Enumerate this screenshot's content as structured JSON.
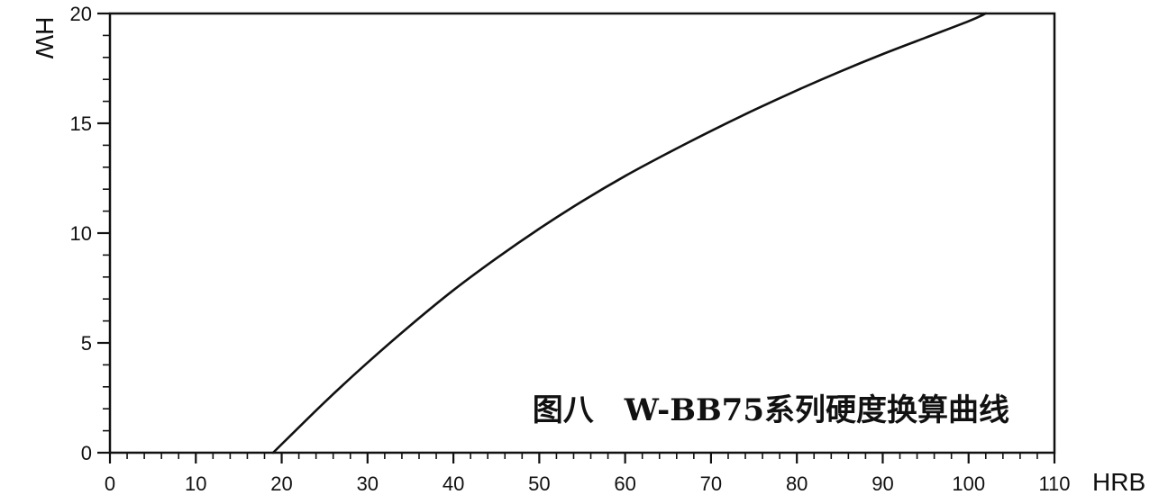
{
  "chart_data": {
    "type": "line",
    "title": "图八　W-BB75系列硬度换算曲线",
    "xlabel": "HRB",
    "ylabel": "HW",
    "xlim": [
      0,
      110
    ],
    "ylim": [
      0,
      20
    ],
    "x_ticks": [
      0,
      10,
      20,
      30,
      40,
      50,
      60,
      70,
      80,
      90,
      100,
      110
    ],
    "y_ticks": [
      0,
      5,
      10,
      15,
      20
    ],
    "grid": false,
    "series": [
      {
        "x": [
          19,
          25,
          30,
          35,
          40,
          45,
          50,
          55,
          60,
          65,
          70,
          75,
          80,
          85,
          90,
          95,
          100,
          102
        ],
        "y": [
          0,
          2.3,
          4.1,
          5.8,
          7.4,
          8.85,
          10.2,
          11.45,
          12.6,
          13.65,
          14.65,
          15.6,
          16.5,
          17.35,
          18.15,
          18.9,
          19.65,
          20
        ]
      }
    ]
  }
}
